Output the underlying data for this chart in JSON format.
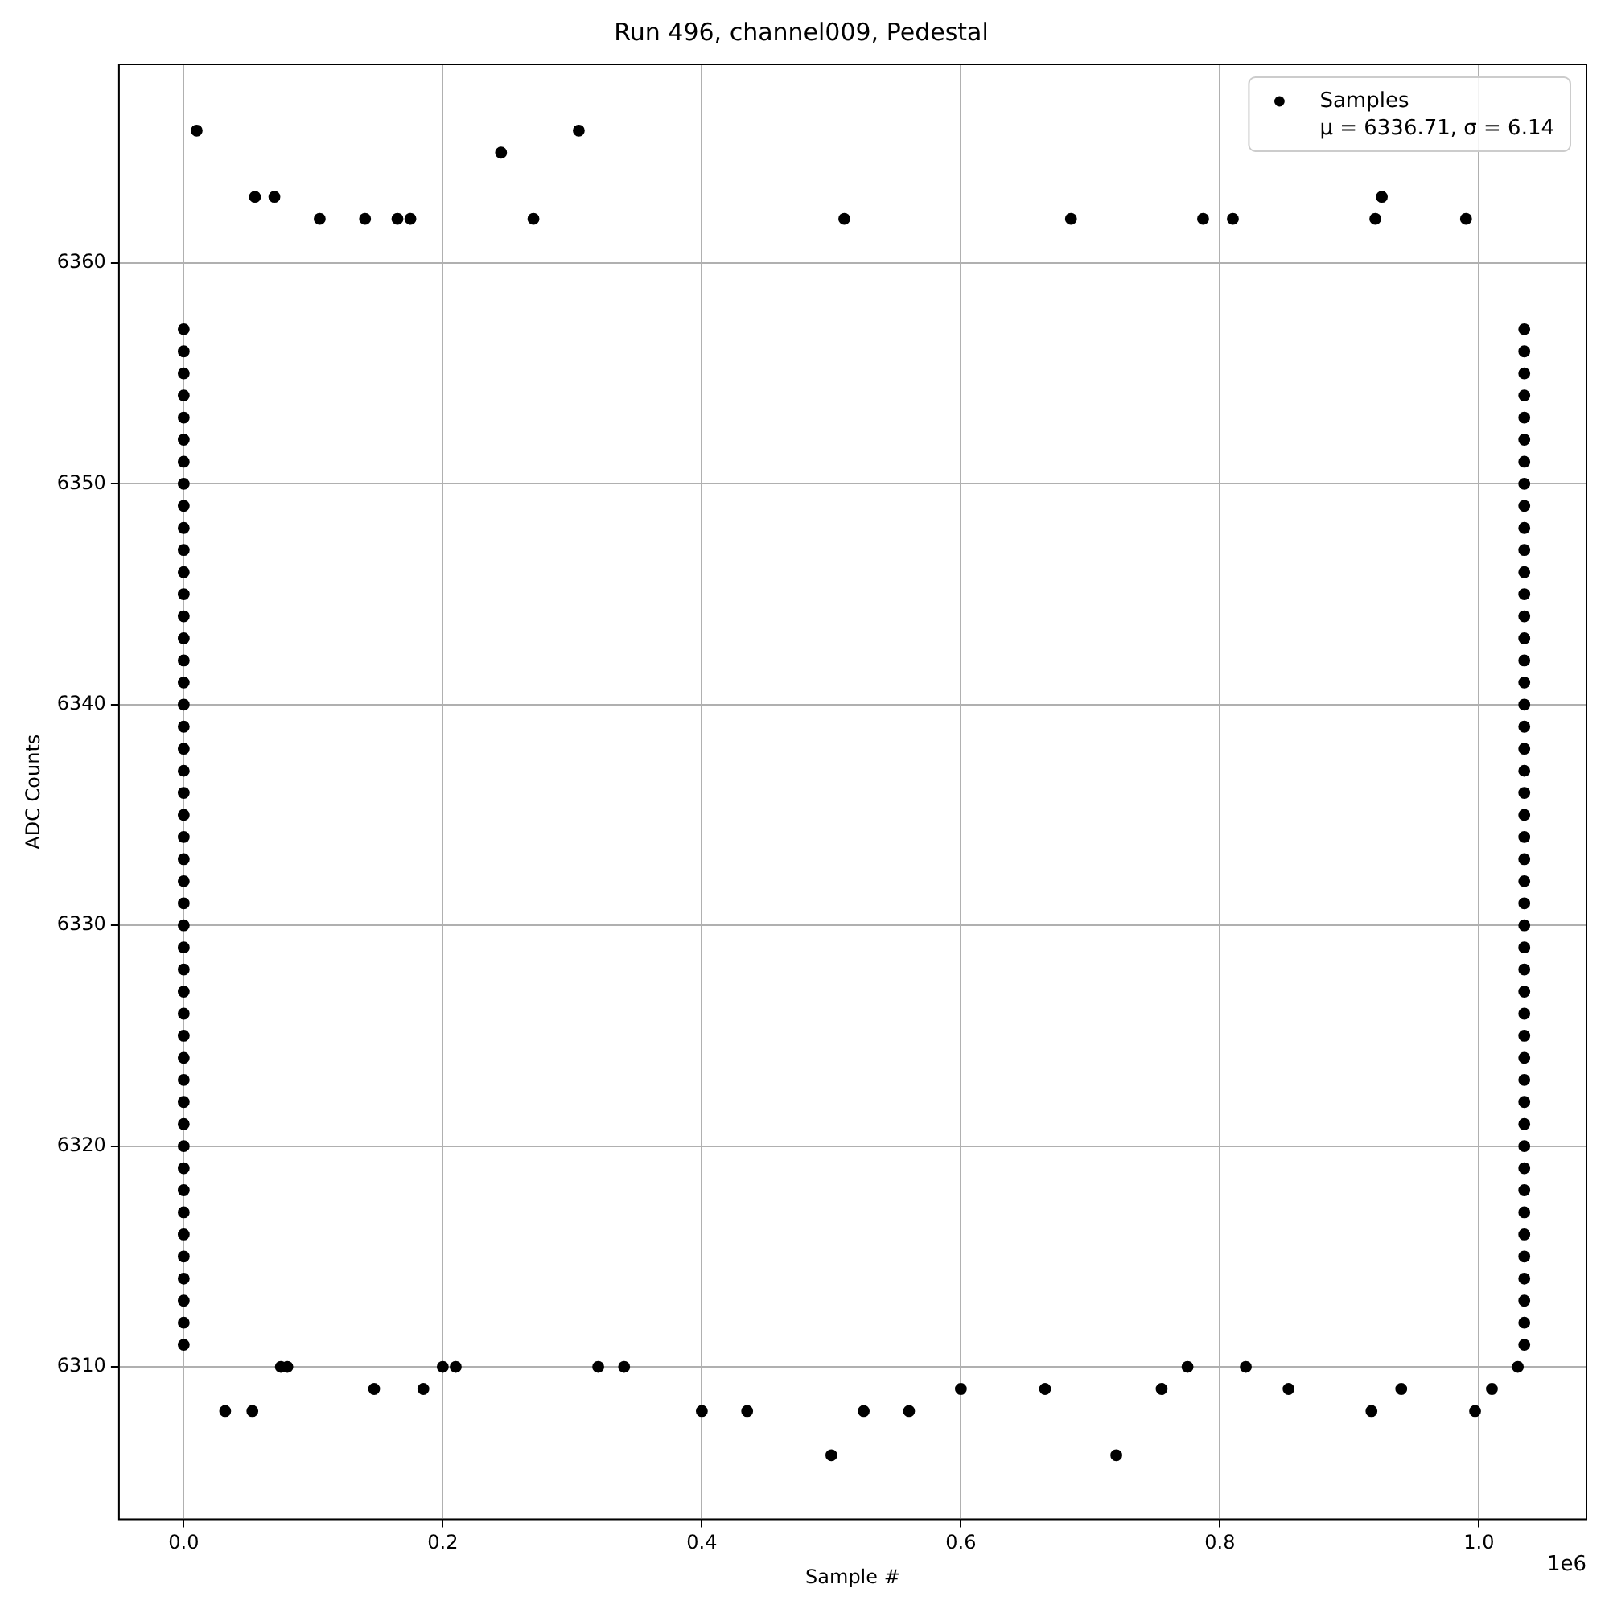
{
  "chart_data": {
    "type": "scatter",
    "title": "Run 496, channel009, Pedestal",
    "xlabel": "Sample #",
    "ylabel": "ADC Counts",
    "annotations": [
      "1e6"
    ],
    "xlim": [
      -0.05,
      1.083
    ],
    "ylim": [
      6303.1,
      6369
    ],
    "xticks": [
      {
        "value": 0,
        "label": "0.0"
      },
      {
        "value": 0.2,
        "label": "0.2"
      },
      {
        "value": 0.4,
        "label": "0.4"
      },
      {
        "value": 0.6,
        "label": "0.6"
      },
      {
        "value": 0.8,
        "label": "0.8"
      },
      {
        "value": 1,
        "label": "1.0"
      }
    ],
    "yticks": [
      6310,
      6320,
      6330,
      6340,
      6350,
      6360
    ],
    "grid": true,
    "legend": "top right",
    "marker": "circle",
    "series": [
      {
        "name": "Samples\nμ = 6336.71, σ = 6.14",
        "color": "#000000",
        "x": [
          0,
          1.035,
          0,
          1.035,
          0,
          1.035,
          0,
          1.035,
          0,
          1.035,
          0,
          1.035,
          0,
          1.035,
          0,
          1.035,
          0,
          1.035,
          0,
          1.035,
          0,
          1.035,
          0,
          1.035,
          0,
          1.035,
          0,
          1.035,
          0,
          1.035,
          0,
          1.035,
          0,
          1.035,
          0,
          1.035,
          0,
          1.035,
          0,
          1.035,
          0,
          1.035,
          0,
          1.035,
          0,
          1.035,
          0,
          1.035,
          0,
          1.035,
          0,
          1.035,
          0,
          1.035,
          0,
          1.035,
          0,
          1.035,
          0,
          1.035,
          0,
          1.035,
          0,
          1.035,
          0,
          1.035,
          0,
          1.035,
          0,
          1.035,
          0,
          1.035,
          0,
          1.035,
          0,
          1.035,
          0,
          1.035,
          0,
          1.035,
          0,
          1.035,
          0,
          1.035,
          0,
          1.035,
          0,
          1.035,
          0,
          1.035,
          0,
          1.035,
          0,
          1.035,
          0.01,
          0.245,
          0.305,
          0.032,
          0.053,
          0.5,
          0.72,
          0.4,
          0.435,
          0.525,
          0.56,
          0.917,
          0.997,
          0.055,
          0.07,
          0.925,
          0.105,
          0.14,
          0.165,
          0.175,
          0.27,
          0.51,
          0.685,
          0.787,
          0.81,
          0.92,
          0.99,
          0.147,
          0.185,
          0.6,
          0.665,
          0.755,
          0.853,
          0.94,
          1.01,
          0.2,
          0.21,
          0.32,
          0.34,
          0.075,
          0.08,
          0.82,
          0.775,
          1.03
        ],
        "values": [
          6311,
          6311,
          6312,
          6312,
          6313,
          6313,
          6314,
          6314,
          6315,
          6315,
          6316,
          6316,
          6317,
          6317,
          6318,
          6318,
          6319,
          6319,
          6320,
          6320,
          6321,
          6321,
          6322,
          6322,
          6323,
          6323,
          6324,
          6324,
          6325,
          6325,
          6326,
          6326,
          6327,
          6327,
          6328,
          6328,
          6329,
          6329,
          6330,
          6330,
          6331,
          6331,
          6332,
          6332,
          6333,
          6333,
          6334,
          6334,
          6335,
          6335,
          6336,
          6336,
          6337,
          6337,
          6338,
          6338,
          6339,
          6339,
          6340,
          6340,
          6341,
          6341,
          6342,
          6342,
          6343,
          6343,
          6344,
          6344,
          6345,
          6345,
          6346,
          6346,
          6347,
          6347,
          6348,
          6348,
          6349,
          6349,
          6350,
          6350,
          6351,
          6351,
          6352,
          6352,
          6353,
          6353,
          6354,
          6354,
          6355,
          6355,
          6356,
          6356,
          6357,
          6357,
          6366,
          6365,
          6366,
          6308,
          6308,
          6306,
          6306,
          6308,
          6308,
          6308,
          6308,
          6308,
          6308,
          6363,
          6363,
          6363,
          6362,
          6362,
          6362,
          6362,
          6362,
          6362,
          6362,
          6362,
          6362,
          6362,
          6362,
          6309,
          6309,
          6309,
          6309,
          6309,
          6309,
          6309,
          6309,
          6310,
          6310,
          6310,
          6310,
          6310,
          6310,
          6310,
          6310,
          6310
        ]
      }
    ]
  }
}
